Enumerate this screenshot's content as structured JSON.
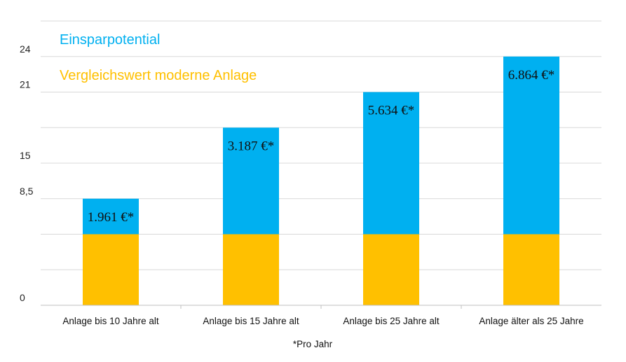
{
  "chart_data": {
    "type": "bar",
    "stacked": true,
    "categories": [
      "Anlage bis 10 Jahre alt",
      "Anlage bis 15 Jahre alt",
      "Anlage bis 25 Jahre alt",
      "Anlage älter als 25 Jahre"
    ],
    "series": [
      {
        "name": "Vergleichswert moderne Anlage",
        "color": "#FFC000",
        "values": [
          10,
          10,
          10,
          10
        ]
      },
      {
        "name": "Einsparpotential",
        "color": "#00B0F0",
        "values": [
          5,
          15,
          20,
          25
        ]
      }
    ],
    "data_labels": [
      "1.961 €*",
      "3.187 €*",
      "5.634 €*",
      "6.864 €*"
    ],
    "y_tick_labels": [
      {
        "value": 0,
        "label": "0"
      },
      {
        "value": 15,
        "label": "8,5"
      },
      {
        "value": 20,
        "label": "15"
      },
      {
        "value": 30,
        "label": "21"
      },
      {
        "value": 35,
        "label": "24"
      }
    ],
    "ylim": [
      0,
      40
    ],
    "gridlines": [
      5,
      10,
      15,
      20,
      25,
      30,
      35,
      40
    ],
    "grid": true,
    "legend_position": "top-left",
    "footnote": "*Pro Jahr"
  }
}
